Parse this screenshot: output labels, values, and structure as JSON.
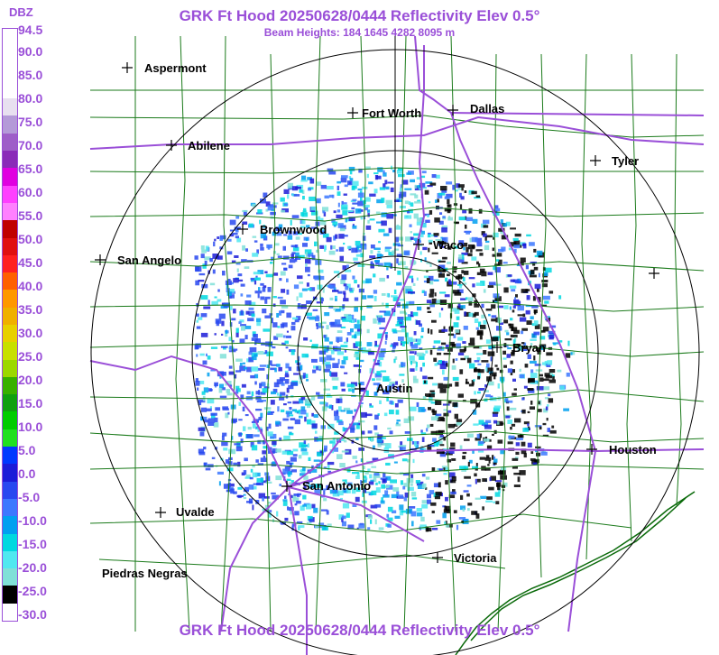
{
  "header": {
    "title": "GRK Ft Hood 20250628/0444 Reflectivity Elev 0.5°",
    "subtitle": "Beam Heights: 184 1645 4282 8095 m",
    "footer_title": "GRK Ft Hood 20250628/0444 Reflectivity Elev 0.5°"
  },
  "legend": {
    "unit": "DBZ",
    "labels": [
      "94.5",
      "90.0",
      "85.0",
      "80.0",
      "75.0",
      "70.0",
      "65.0",
      "60.0",
      "55.0",
      "50.0",
      "45.0",
      "40.0",
      "35.0",
      "30.0",
      "25.0",
      "20.0",
      "15.0",
      "10.0",
      "5.0",
      "0.0",
      "-5.0",
      "-10.0",
      "-15.0",
      "-20.0",
      "-25.0",
      "-30.0"
    ],
    "colors": [
      "#ffffff",
      "#ffffff",
      "#ffffff",
      "#ffffff",
      "#e8e0f0",
      "#b49ad8",
      "#9e5ec8",
      "#8a2ab8",
      "#e000e0",
      "#ff40ff",
      "#ff80ff",
      "#c00000",
      "#e01010",
      "#ff2020",
      "#ff6000",
      "#ff9800",
      "#f0b000",
      "#e8d000",
      "#c8e000",
      "#9cd800",
      "#38b000",
      "#10a010",
      "#00cc00",
      "#20e020",
      "#0038ff",
      "#1c1cd8",
      "#2848f0",
      "#3c78ff",
      "#00a0f0",
      "#00d8e0",
      "#50e8f0",
      "#80e0d8",
      "#000000",
      "#ffffff"
    ]
  },
  "map": {
    "radar_site": "GRK Ft Hood",
    "cities": [
      {
        "name": "Aspermont",
        "icon": "plus-marker-icon"
      },
      {
        "name": "Fort Worth",
        "icon": "plus-marker-icon"
      },
      {
        "name": "Dallas",
        "icon": "plus-marker-icon"
      },
      {
        "name": "Abilene",
        "icon": "plus-marker-icon"
      },
      {
        "name": "Tyler",
        "icon": "plus-marker-icon"
      },
      {
        "name": "Brownwood",
        "icon": "plus-marker-icon"
      },
      {
        "name": "Waco",
        "icon": "plus-marker-icon"
      },
      {
        "name": "San Angelo",
        "icon": "plus-marker-icon"
      },
      {
        "name": "Bryan",
        "icon": "plus-marker-icon"
      },
      {
        "name": "Austin",
        "icon": "plus-marker-icon"
      },
      {
        "name": "Houston",
        "icon": "plus-marker-icon"
      },
      {
        "name": "San Antonio",
        "icon": "plus-marker-icon"
      },
      {
        "name": "Uvalde",
        "icon": "plus-marker-icon"
      },
      {
        "name": "Victoria",
        "icon": "plus-marker-icon"
      },
      {
        "name": "Piedras Negras",
        "icon": "none"
      },
      {
        "name": "",
        "icon": "plus-marker-icon"
      }
    ],
    "colors": {
      "range_rings": "#000000",
      "counties": "#1a7a1a",
      "highways": "#9a4fd8",
      "coast": "#0a6a0a",
      "titles": "#9a4fd8"
    }
  }
}
